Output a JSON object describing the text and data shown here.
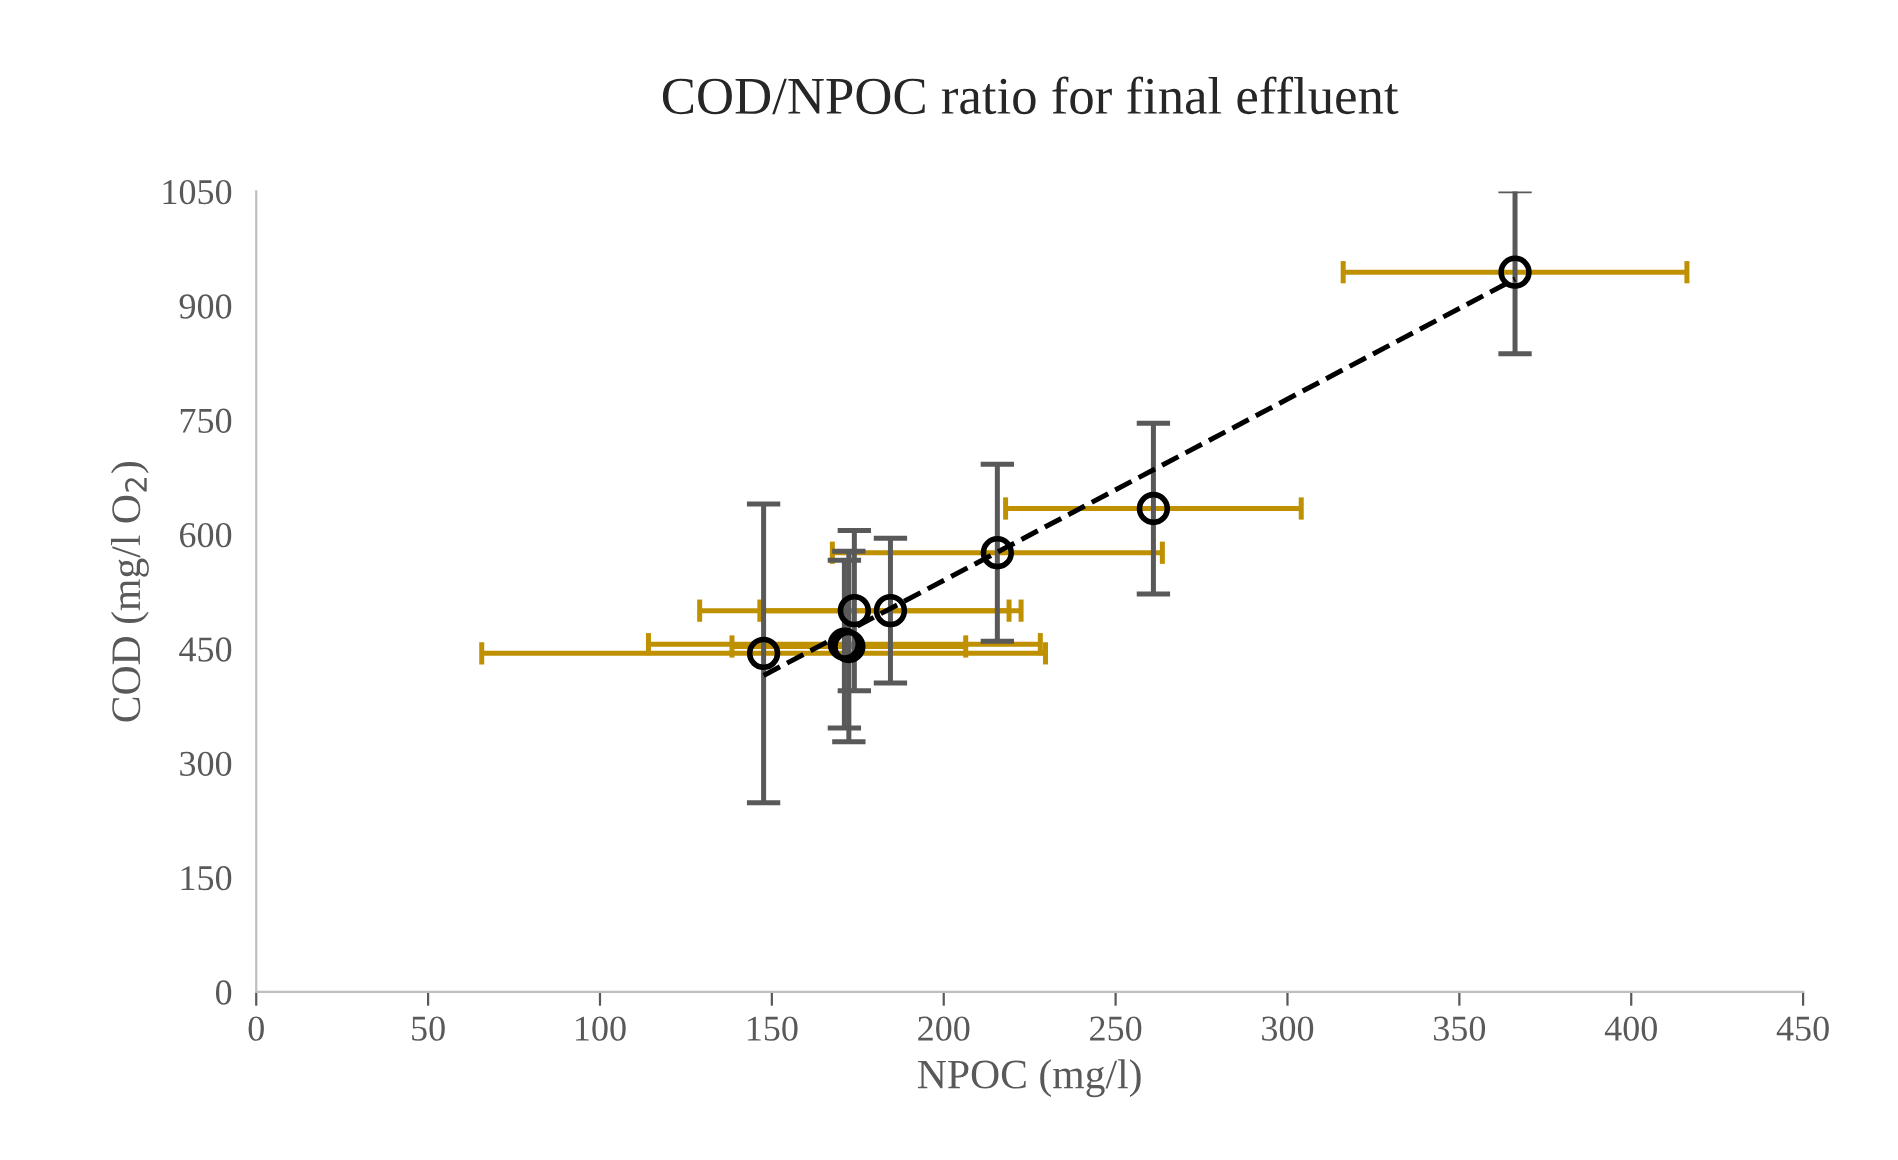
{
  "chart_data": {
    "type": "scatter",
    "title": "COD/NPOC ratio for final effluent",
    "xlabel": "NPOC (mg/l)",
    "ylabel": "COD (mg/l O$_{2}$)",
    "xlim": [
      0,
      450
    ],
    "xticks": [
      0,
      50,
      100,
      150,
      200,
      250,
      300,
      350,
      400,
      450
    ],
    "ylim": [
      0,
      1050
    ],
    "yticks": [
      0,
      150,
      300,
      450,
      600,
      750,
      900,
      1050
    ],
    "grid": false,
    "legend": false,
    "marker": "circle",
    "series": [
      {
        "color": "#000000",
        "x": [
          147.6,
          171.1,
          172.4,
          174,
          184.5,
          215.6,
          261,
          366.2
        ],
        "values": [
          444,
          456,
          453,
          500,
          500,
          576,
          634,
          944
        ],
        "errors": [
          196,
          110,
          125,
          105,
          95,
          116,
          112,
          107
        ],
        "xerrors": [
          82,
          57,
          34,
          45,
          38,
          48,
          43,
          50
        ]
      },
      {
        "type": "line",
        "color": "#000000",
        "line_style": "dashed",
        "marker": "none",
        "x": [
          147.6,
          366.2
        ],
        "values": [
          415,
          935
        ]
      }
    ]
  }
}
